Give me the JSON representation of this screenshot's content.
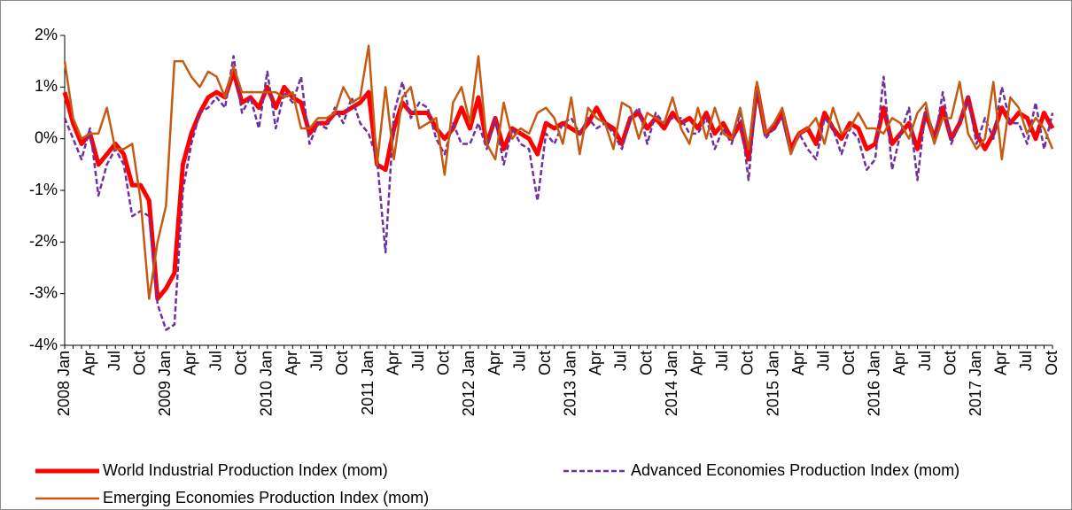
{
  "chart_data": {
    "type": "line",
    "categories": [
      "2008 Jan",
      null,
      null,
      "Apr",
      null,
      null,
      "Jul",
      null,
      null,
      "Oct",
      null,
      null,
      "2009 Jan",
      null,
      null,
      "Apr",
      null,
      null,
      "Jul",
      null,
      null,
      "Oct",
      null,
      null,
      "2010 Jan",
      null,
      null,
      "Apr",
      null,
      null,
      "Jul",
      null,
      null,
      "Oct",
      null,
      null,
      "2011 Jan",
      null,
      null,
      "Apr",
      null,
      null,
      "Jul",
      null,
      null,
      "Oct",
      null,
      null,
      "2012 Jan",
      null,
      null,
      "Apr",
      null,
      null,
      "Jul",
      null,
      null,
      "Oct",
      null,
      null,
      "2013 Jan",
      null,
      null,
      "Apr",
      null,
      null,
      "Jul",
      null,
      null,
      "Oct",
      null,
      null,
      "2014 Jan",
      null,
      null,
      "Apr",
      null,
      null,
      "Jul",
      null,
      null,
      "Oct",
      null,
      null,
      "2015 Jan",
      null,
      null,
      "Apr",
      null,
      null,
      "Jul",
      null,
      null,
      "Oct",
      null,
      null,
      "2016 Jan",
      null,
      null,
      "Apr",
      null,
      null,
      "Jul",
      null,
      null,
      "Oct",
      null,
      null,
      "2017 Jan",
      null,
      null,
      "Apr",
      null,
      null,
      "Jul",
      null,
      null,
      "Oct"
    ],
    "series": [
      {
        "name": "World Industrial Production Index (mom)",
        "color": "#ff0000",
        "width": 5,
        "style": "solid",
        "values": [
          0.9,
          0.3,
          -0.1,
          0.1,
          -0.5,
          -0.3,
          -0.1,
          -0.3,
          -0.9,
          -0.9,
          -1.2,
          -3.1,
          -2.9,
          -2.6,
          -0.5,
          0.1,
          0.5,
          0.8,
          0.9,
          0.8,
          1.3,
          0.7,
          0.8,
          0.6,
          1.0,
          0.6,
          1.0,
          0.8,
          0.7,
          0.1,
          0.3,
          0.3,
          0.5,
          0.5,
          0.6,
          0.7,
          0.9,
          -0.5,
          -0.6,
          0.2,
          0.7,
          0.5,
          0.5,
          0.5,
          0.2,
          0.0,
          0.2,
          0.6,
          0.2,
          0.8,
          -0.1,
          0.4,
          -0.2,
          0.2,
          0.1,
          0.0,
          -0.3,
          0.3,
          0.2,
          0.3,
          0.2,
          0.1,
          0.3,
          0.6,
          0.3,
          0.2,
          -0.1,
          0.4,
          0.5,
          0.2,
          0.4,
          0.2,
          0.5,
          0.3,
          0.4,
          0.2,
          0.5,
          0.1,
          0.3,
          0.0,
          0.3,
          -0.4,
          1.0,
          0.1,
          0.2,
          0.5,
          -0.2,
          0.1,
          0.2,
          -0.1,
          0.5,
          0.2,
          0.0,
          0.3,
          0.2,
          -0.2,
          -0.1,
          0.6,
          -0.1,
          0.1,
          0.3,
          -0.2,
          0.5,
          0.0,
          0.6,
          0.0,
          0.3,
          0.8,
          0.1,
          -0.2,
          0.1,
          0.6,
          0.3,
          0.5,
          0.4,
          0.0,
          0.5,
          0.2
        ]
      },
      {
        "name": "Advanced Economies Production Index (mom)",
        "color": "#7030a0",
        "width": 2.5,
        "style": "dashed",
        "values": [
          0.4,
          0.0,
          -0.4,
          0.2,
          -1.1,
          -0.5,
          -0.2,
          -0.5,
          -1.5,
          -1.4,
          -1.5,
          -3.2,
          -3.7,
          -3.6,
          -1.0,
          -0.1,
          0.5,
          0.6,
          0.8,
          0.6,
          1.6,
          0.5,
          0.8,
          0.2,
          1.3,
          0.2,
          0.9,
          0.7,
          1.2,
          -0.1,
          0.3,
          0.2,
          0.6,
          0.3,
          0.8,
          0.3,
          0.1,
          -0.4,
          -2.2,
          0.5,
          1.1,
          0.4,
          0.7,
          0.6,
          0.0,
          -0.3,
          0.3,
          -0.1,
          -0.1,
          0.3,
          -0.2,
          0.4,
          -0.5,
          0.2,
          -0.1,
          -0.2,
          -1.2,
          0.1,
          -0.1,
          0.3,
          0.4,
          0.1,
          0.4,
          0.2,
          0.3,
          0.1,
          -0.2,
          0.4,
          0.6,
          -0.1,
          0.5,
          0.3,
          0.4,
          0.4,
          0.1,
          0.1,
          0.4,
          -0.2,
          0.2,
          -0.1,
          0.5,
          -0.8,
          1.0,
          0.0,
          0.2,
          0.4,
          -0.3,
          0.1,
          -0.2,
          -0.4,
          0.4,
          0.2,
          -0.3,
          0.2,
          0.0,
          -0.6,
          -0.4,
          1.2,
          -0.6,
          0.1,
          0.6,
          -0.8,
          0.6,
          -0.1,
          0.9,
          -0.1,
          0.3,
          0.8,
          -0.1,
          0.4,
          0.0,
          1.0,
          0.3,
          0.3,
          -0.1,
          0.7,
          -0.2,
          0.5
        ]
      },
      {
        "name": "Emerging Economies Production Index (mom)",
        "color": "#c55a11",
        "width": 2.5,
        "style": "solid",
        "values": [
          1.5,
          0.4,
          0.0,
          0.1,
          0.1,
          0.6,
          -0.2,
          -0.2,
          -0.1,
          -1.2,
          -3.1,
          -2.0,
          -1.3,
          1.5,
          1.5,
          1.2,
          1.0,
          1.3,
          1.2,
          0.8,
          1.4,
          0.9,
          0.9,
          0.9,
          0.9,
          0.9,
          0.8,
          0.9,
          0.2,
          0.2,
          0.4,
          0.4,
          0.5,
          1.0,
          0.7,
          0.8,
          1.8,
          -0.5,
          1.0,
          -0.4,
          0.8,
          1.0,
          0.2,
          0.3,
          0.4,
          -0.7,
          0.7,
          1.0,
          0.3,
          1.6,
          -0.1,
          -0.4,
          0.7,
          0.0,
          0.2,
          0.1,
          0.5,
          0.6,
          0.4,
          -0.1,
          0.8,
          -0.3,
          0.6,
          0.4,
          0.3,
          -0.2,
          0.7,
          0.6,
          0.0,
          0.5,
          0.4,
          0.3,
          0.8,
          0.2,
          -0.1,
          0.6,
          0.0,
          0.6,
          0.1,
          0.0,
          0.6,
          -0.2,
          1.1,
          0.1,
          0.3,
          0.6,
          -0.3,
          0.1,
          0.2,
          0.4,
          -0.1,
          0.6,
          0.1,
          0.2,
          0.5,
          0.2,
          0.2,
          0.1,
          0.4,
          0.3,
          0.0,
          0.5,
          0.7,
          -0.1,
          0.4,
          0.4,
          1.1,
          0.1,
          -0.2,
          0.0,
          1.1,
          -0.4,
          0.8,
          0.6,
          0.1,
          0.4,
          0.2,
          -0.2
        ]
      }
    ],
    "ylim": [
      -4,
      2
    ],
    "yticks": [
      {
        "value": -4,
        "label": "-4%"
      },
      {
        "value": -3,
        "label": "-3%"
      },
      {
        "value": -2,
        "label": "-2%"
      },
      {
        "value": -1,
        "label": "-1%"
      },
      {
        "value": 0,
        "label": "0%"
      },
      {
        "value": 1,
        "label": "1%"
      },
      {
        "value": 2,
        "label": "2%"
      }
    ],
    "grid": false
  }
}
